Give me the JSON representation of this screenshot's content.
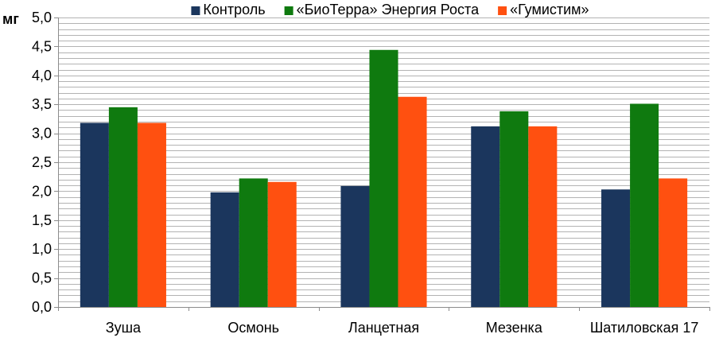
{
  "chart_data": {
    "type": "bar",
    "ylabel": "мг",
    "categories": [
      "Зуша",
      "Осмонь",
      "Ланцетная",
      "Мезенка",
      "Шатиловская 17"
    ],
    "series": [
      {
        "name": "Контроль",
        "color": "#1b365d",
        "values": [
          3.18,
          1.98,
          2.09,
          3.12,
          2.03
        ]
      },
      {
        "name": "«БиоТерра» Энергия Роста",
        "color": "#0f7a0f",
        "values": [
          3.45,
          2.22,
          4.44,
          3.38,
          3.51
        ]
      },
      {
        "name": "«Гумистим»",
        "color": "#ff5010",
        "values": [
          3.18,
          2.16,
          3.63,
          3.12,
          2.22
        ]
      }
    ],
    "ylim": [
      0,
      5
    ],
    "yticks": [
      "0,0",
      "0,5",
      "1,0",
      "1,5",
      "2,0",
      "2,5",
      "3,0",
      "3,5",
      "4,0",
      "4,5",
      "5,0"
    ],
    "minor_grid_step": 0.1,
    "grid": true,
    "legend_position": "top"
  }
}
